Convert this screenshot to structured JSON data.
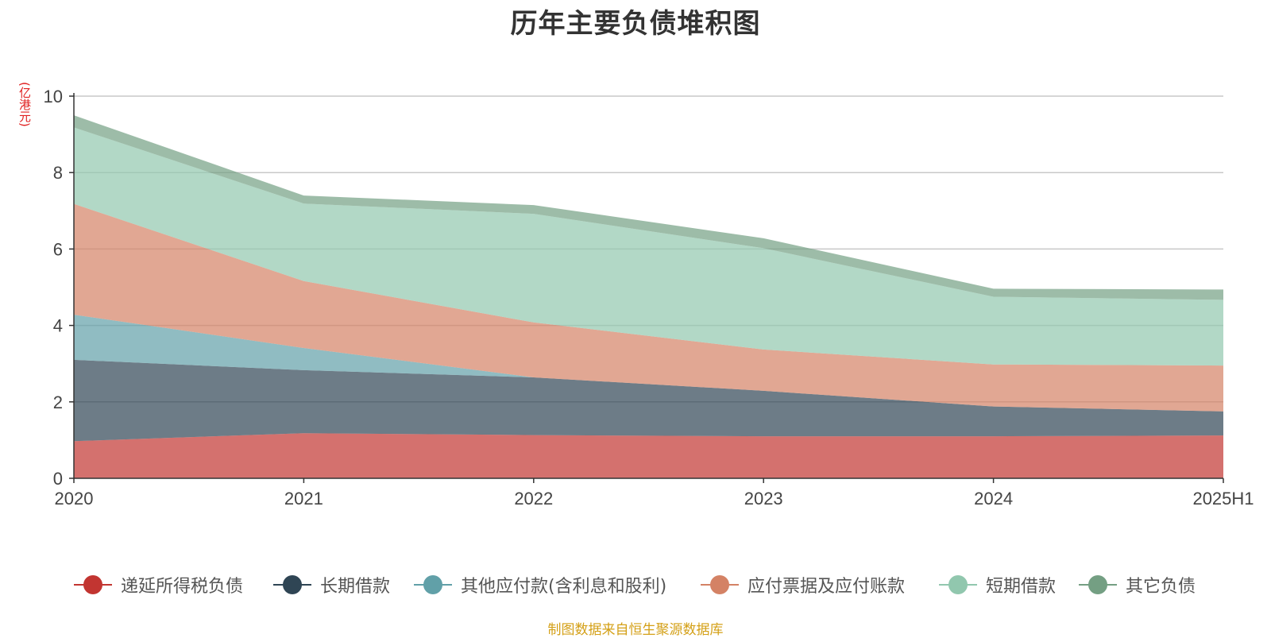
{
  "title": "历年主要负债堆积图",
  "unit_label": "(亿港元)",
  "source": "制图数据来自恒生聚源数据库",
  "chart_data": {
    "type": "area",
    "stacked": true,
    "title": "历年主要负债堆积图",
    "ylabel": "(亿港元)",
    "categories": [
      "2020",
      "2021",
      "2022",
      "2023",
      "2024",
      "2025H1"
    ],
    "ylim": [
      0,
      10
    ],
    "yticks": [
      0,
      2,
      4,
      6,
      8,
      10
    ],
    "grid": true,
    "legend_position": "bottom",
    "series": [
      {
        "name": "递延所得税负债",
        "color": "#c23531",
        "values": [
          0.97,
          1.18,
          1.13,
          1.1,
          1.1,
          1.12
        ]
      },
      {
        "name": "长期借款",
        "color": "#2f4554",
        "values": [
          2.13,
          1.65,
          1.51,
          1.19,
          0.78,
          0.63
        ]
      },
      {
        "name": "其他应付款(含利息和股利)",
        "color": "#61a0a8",
        "values": [
          1.18,
          0.58,
          0.0,
          0.0,
          0.0,
          0.0
        ]
      },
      {
        "name": "应付票据及应付账款",
        "color": "#d48265",
        "values": [
          2.9,
          1.75,
          1.44,
          1.08,
          1.1,
          1.2
        ]
      },
      {
        "name": "短期借款",
        "color": "#91c7ae",
        "values": [
          2.0,
          2.03,
          2.84,
          2.65,
          1.77,
          1.72
        ]
      },
      {
        "name": "其它负债",
        "color": "#749f83",
        "values": [
          0.32,
          0.21,
          0.23,
          0.26,
          0.21,
          0.27
        ]
      }
    ]
  }
}
